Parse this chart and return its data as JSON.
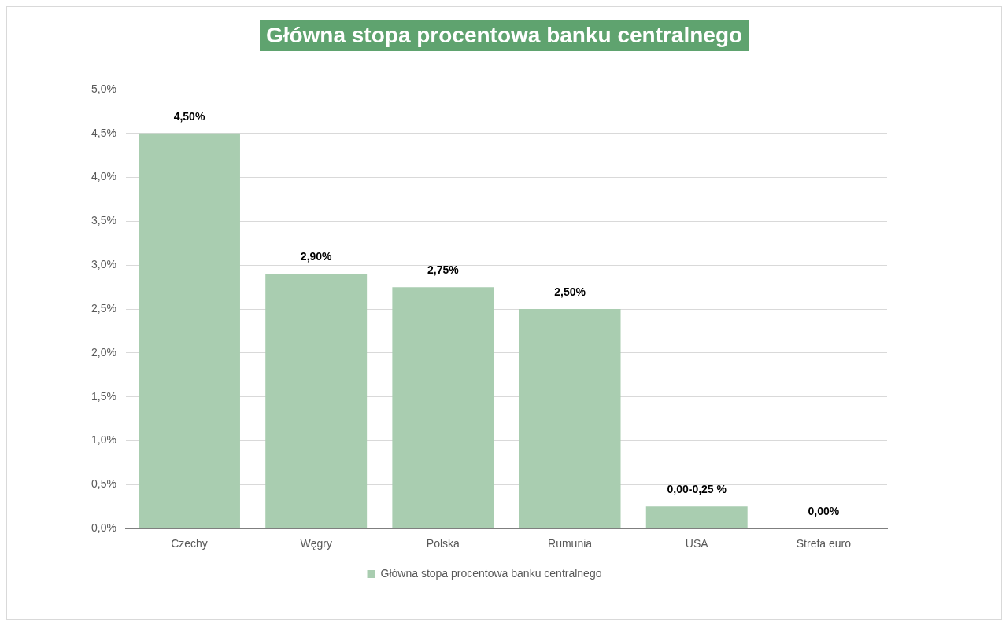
{
  "chart_data": {
    "type": "bar",
    "title": "Główna stopa procentowa banku centralnego",
    "categories": [
      "Czechy",
      "Węgry",
      "Polska",
      "Rumunia",
      "USA",
      "Strefa euro"
    ],
    "series": [
      {
        "name": "Główna stopa procentowa banku centralnego",
        "color": "#a9cdb0",
        "values": [
          4.5,
          2.9,
          2.75,
          2.5,
          0.25,
          0
        ]
      }
    ],
    "value_labels": [
      "4,50%",
      "2,90%",
      "2,75%",
      "2,50%",
      "0,00-0,25 %",
      "0,00%"
    ],
    "ylim": [
      0,
      5
    ],
    "yticks": [
      {
        "value": 0,
        "label": "0,0%"
      },
      {
        "value": 0.5,
        "label": "0,5%"
      },
      {
        "value": 1,
        "label": "1,0%"
      },
      {
        "value": 1.5,
        "label": "1,5%"
      },
      {
        "value": 2,
        "label": "2,0%"
      },
      {
        "value": 2.5,
        "label": "2,5%"
      },
      {
        "value": 3,
        "label": "3,0%"
      },
      {
        "value": 3.5,
        "label": "3,5%"
      },
      {
        "value": 4,
        "label": "4,0%"
      },
      {
        "value": 4.5,
        "label": "4,5%"
      },
      {
        "value": 5,
        "label": "5,0%"
      }
    ],
    "grid": "y",
    "legend": "bottom"
  }
}
